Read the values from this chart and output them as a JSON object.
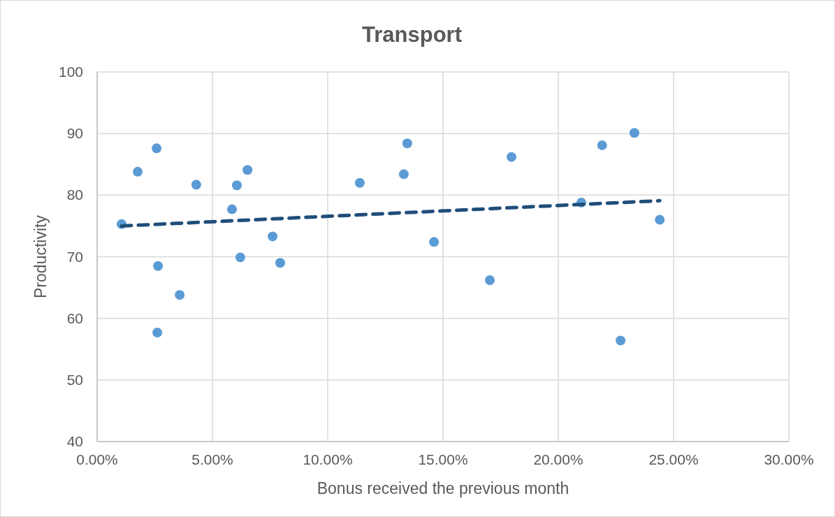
{
  "chart_data": {
    "type": "scatter",
    "title": "Transport",
    "xlabel": "Bonus received the previous month",
    "ylabel": "Productivity",
    "xlim": [
      0,
      30
    ],
    "xticks": [
      {
        "value": 0,
        "label": "0.00%"
      },
      {
        "value": 5,
        "label": "5.00%"
      },
      {
        "value": 10,
        "label": "10.00%"
      },
      {
        "value": 15,
        "label": "15.00%"
      },
      {
        "value": 20,
        "label": "20.00%"
      },
      {
        "value": 25,
        "label": "25.00%"
      },
      {
        "value": 30,
        "label": "30.00%"
      }
    ],
    "ylim": [
      40,
      100
    ],
    "yticks": [
      40,
      50,
      60,
      70,
      80,
      90,
      100
    ],
    "grid": true,
    "series": [
      {
        "color": "#5b9bd5",
        "marker": "circle",
        "x": [
          1.06,
          1.76,
          2.58,
          2.64,
          2.61,
          3.58,
          4.3,
          5.85,
          6.06,
          6.21,
          6.52,
          7.61,
          7.94,
          11.39,
          13.3,
          13.45,
          14.61,
          17.03,
          17.97,
          21.0,
          21.9,
          22.7,
          23.3,
          24.4
        ],
        "values": [
          75.3,
          83.8,
          87.6,
          68.5,
          57.7,
          63.8,
          81.7,
          77.7,
          81.6,
          69.9,
          84.1,
          73.3,
          69.0,
          82.0,
          83.4,
          88.4,
          72.4,
          66.2,
          86.2,
          78.8,
          88.1,
          56.4,
          90.1,
          76.0
        ]
      },
      {
        "type": "line",
        "color": "#1f4e79",
        "line_style": "dashed",
        "marker": "none",
        "x": [
          1.06,
          24.4
        ],
        "values": [
          75.0,
          79.1
        ]
      }
    ]
  }
}
